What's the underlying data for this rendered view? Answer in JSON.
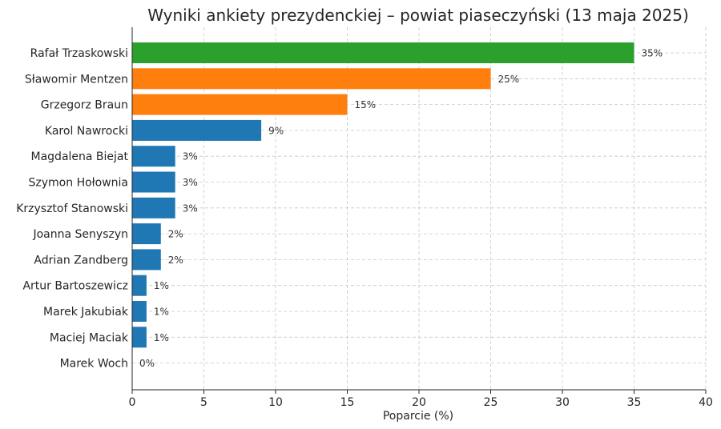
{
  "chart_data": {
    "type": "bar",
    "orientation": "horizontal",
    "title": "Wyniki ankiety prezydenckiej – powiat piaseczyński (13 maja 2025)",
    "xlabel": "Poparcie (%)",
    "ylabel": "",
    "xlim": [
      0,
      40
    ],
    "xticks": [
      0,
      5,
      10,
      15,
      20,
      25,
      30,
      35,
      40
    ],
    "grid": true,
    "categories": [
      "Rafał Trzaskowski",
      "Sławomir Mentzen",
      "Grzegorz Braun",
      "Karol Nawrocki",
      "Magdalena Biejat",
      "Szymon Hołownia",
      "Krzysztof Stanowski",
      "Joanna Senyszyn",
      "Adrian Zandberg",
      "Artur Bartoszewicz",
      "Marek Jakubiak",
      "Maciej Maciak",
      "Marek Woch"
    ],
    "values": [
      35,
      25,
      15,
      9,
      3,
      3,
      3,
      2,
      2,
      1,
      1,
      1,
      0
    ],
    "data_labels": [
      "35%",
      "25%",
      "15%",
      "9%",
      "3%",
      "3%",
      "3%",
      "2%",
      "2%",
      "1%",
      "1%",
      "1%",
      "0%"
    ],
    "bar_colors": [
      "#2ca02c",
      "#ff7f0e",
      "#ff7f0e",
      "#1f77b4",
      "#1f77b4",
      "#1f77b4",
      "#1f77b4",
      "#1f77b4",
      "#1f77b4",
      "#1f77b4",
      "#1f77b4",
      "#1f77b4",
      "#1f77b4"
    ]
  }
}
